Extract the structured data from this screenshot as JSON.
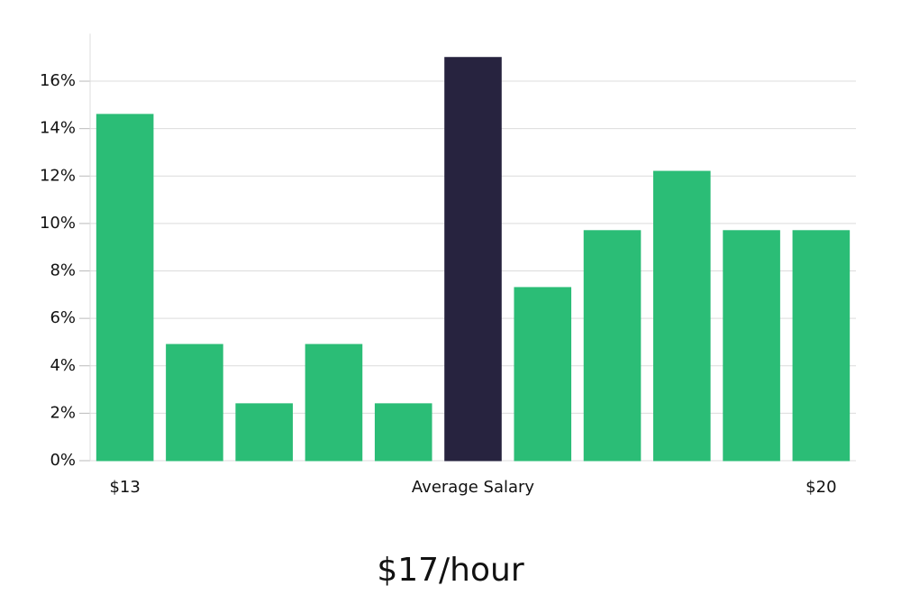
{
  "chart_data": {
    "type": "bar",
    "subtitle": "$17/hour",
    "categories": [
      "$13",
      null,
      null,
      null,
      null,
      "Average Salary",
      null,
      null,
      null,
      null,
      "$20"
    ],
    "values": [
      14.6,
      4.9,
      2.4,
      4.9,
      2.4,
      17.0,
      7.3,
      9.7,
      12.2,
      9.7,
      9.7
    ],
    "colors": [
      "#2bbd76",
      "#2bbd76",
      "#2bbd76",
      "#2bbd76",
      "#2bbd76",
      "#27233f",
      "#2bbd76",
      "#2bbd76",
      "#2bbd76",
      "#2bbd76",
      "#2bbd76"
    ],
    "ylim": [
      0,
      18
    ],
    "yticks": [
      {
        "value": 0,
        "label": "0%"
      },
      {
        "value": 2,
        "label": "2%"
      },
      {
        "value": 4,
        "label": "4%"
      },
      {
        "value": 6,
        "label": "6%"
      },
      {
        "value": 8,
        "label": "8%"
      },
      {
        "value": 10,
        "label": "10%"
      },
      {
        "value": 12,
        "label": "12%"
      },
      {
        "value": 14,
        "label": "14%"
      },
      {
        "value": 16,
        "label": "16%"
      }
    ],
    "grid": true
  }
}
